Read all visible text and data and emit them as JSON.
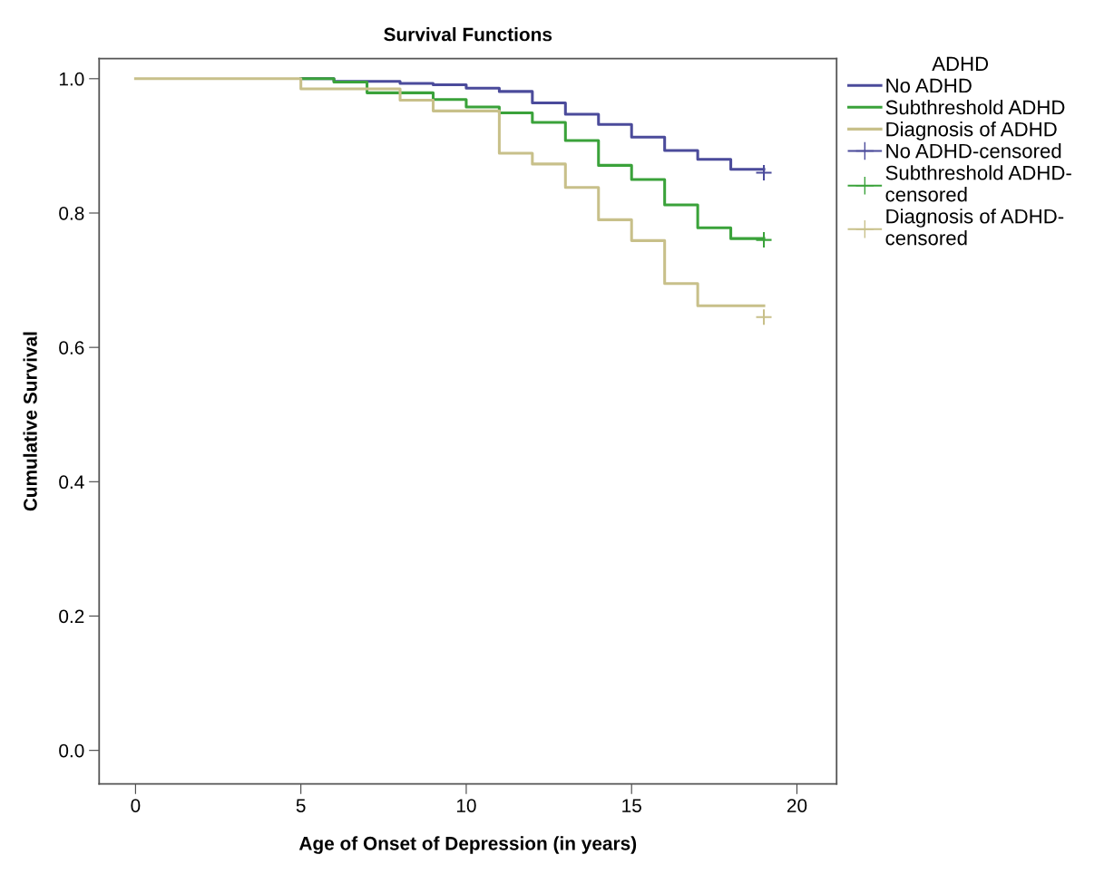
{
  "chart_data": {
    "type": "step",
    "title": "Survival Functions",
    "xlabel": "Age of Onset of Depression (in years)",
    "ylabel": "Cumulative Survival",
    "legend_title": "ADHD",
    "legend": "right",
    "grid": false,
    "xlim": [
      -1.1,
      21.2
    ],
    "xticks": [
      0,
      5,
      10,
      15,
      20
    ],
    "ylim": [
      -0.05,
      1.03
    ],
    "yticks": [
      {
        "value": 0,
        "label": "0.0"
      },
      {
        "value": 0.2,
        "label": "0.2"
      },
      {
        "value": 0.4,
        "label": "0.4"
      },
      {
        "value": 0.6,
        "label": "0.6"
      },
      {
        "value": 0.8,
        "label": "0.8"
      },
      {
        "value": 1,
        "label": "1.0"
      }
    ],
    "series": [
      {
        "name": "No ADHD",
        "color": "#4b4b9b",
        "x": [
          5,
          6,
          8,
          9,
          10,
          11,
          12,
          13,
          14,
          15,
          16,
          17,
          18,
          19
        ],
        "values": [
          1.0,
          0.996,
          0.993,
          0.991,
          0.986,
          0.981,
          0.964,
          0.947,
          0.932,
          0.913,
          0.893,
          0.88,
          0.865,
          0.865
        ]
      },
      {
        "name": "Subthreshold ADHD",
        "color": "#3aa23a",
        "x": [
          5,
          6,
          7,
          9,
          10,
          11,
          12,
          13,
          14,
          15,
          16,
          17,
          18,
          19
        ],
        "values": [
          1.0,
          0.995,
          0.979,
          0.969,
          0.958,
          0.949,
          0.935,
          0.908,
          0.871,
          0.85,
          0.812,
          0.778,
          0.762,
          0.762
        ]
      },
      {
        "name": "Diagnosis of ADHD",
        "color": "#c8c08a",
        "x": [
          0,
          5,
          8,
          9,
          11,
          12,
          13,
          14,
          15,
          16,
          17,
          19
        ],
        "values": [
          1.0,
          0.985,
          0.968,
          0.952,
          0.889,
          0.873,
          0.838,
          0.79,
          0.759,
          0.695,
          0.662,
          0.662
        ]
      },
      {
        "name": "No ADHD-censored",
        "type": "scatter",
        "marker": "cross",
        "color": "#4b4b9b",
        "x": [
          19
        ],
        "values": [
          0.86
        ]
      },
      {
        "name": "Subthreshold ADHD-\ncensored",
        "type": "scatter",
        "marker": "cross",
        "color": "#3aa23a",
        "x": [
          19
        ],
        "values": [
          0.76
        ]
      },
      {
        "name": "Diagnosis of ADHD-\ncensored",
        "type": "scatter",
        "marker": "cross",
        "color": "#c8c08a",
        "x": [
          19
        ],
        "values": [
          0.645
        ]
      }
    ]
  }
}
